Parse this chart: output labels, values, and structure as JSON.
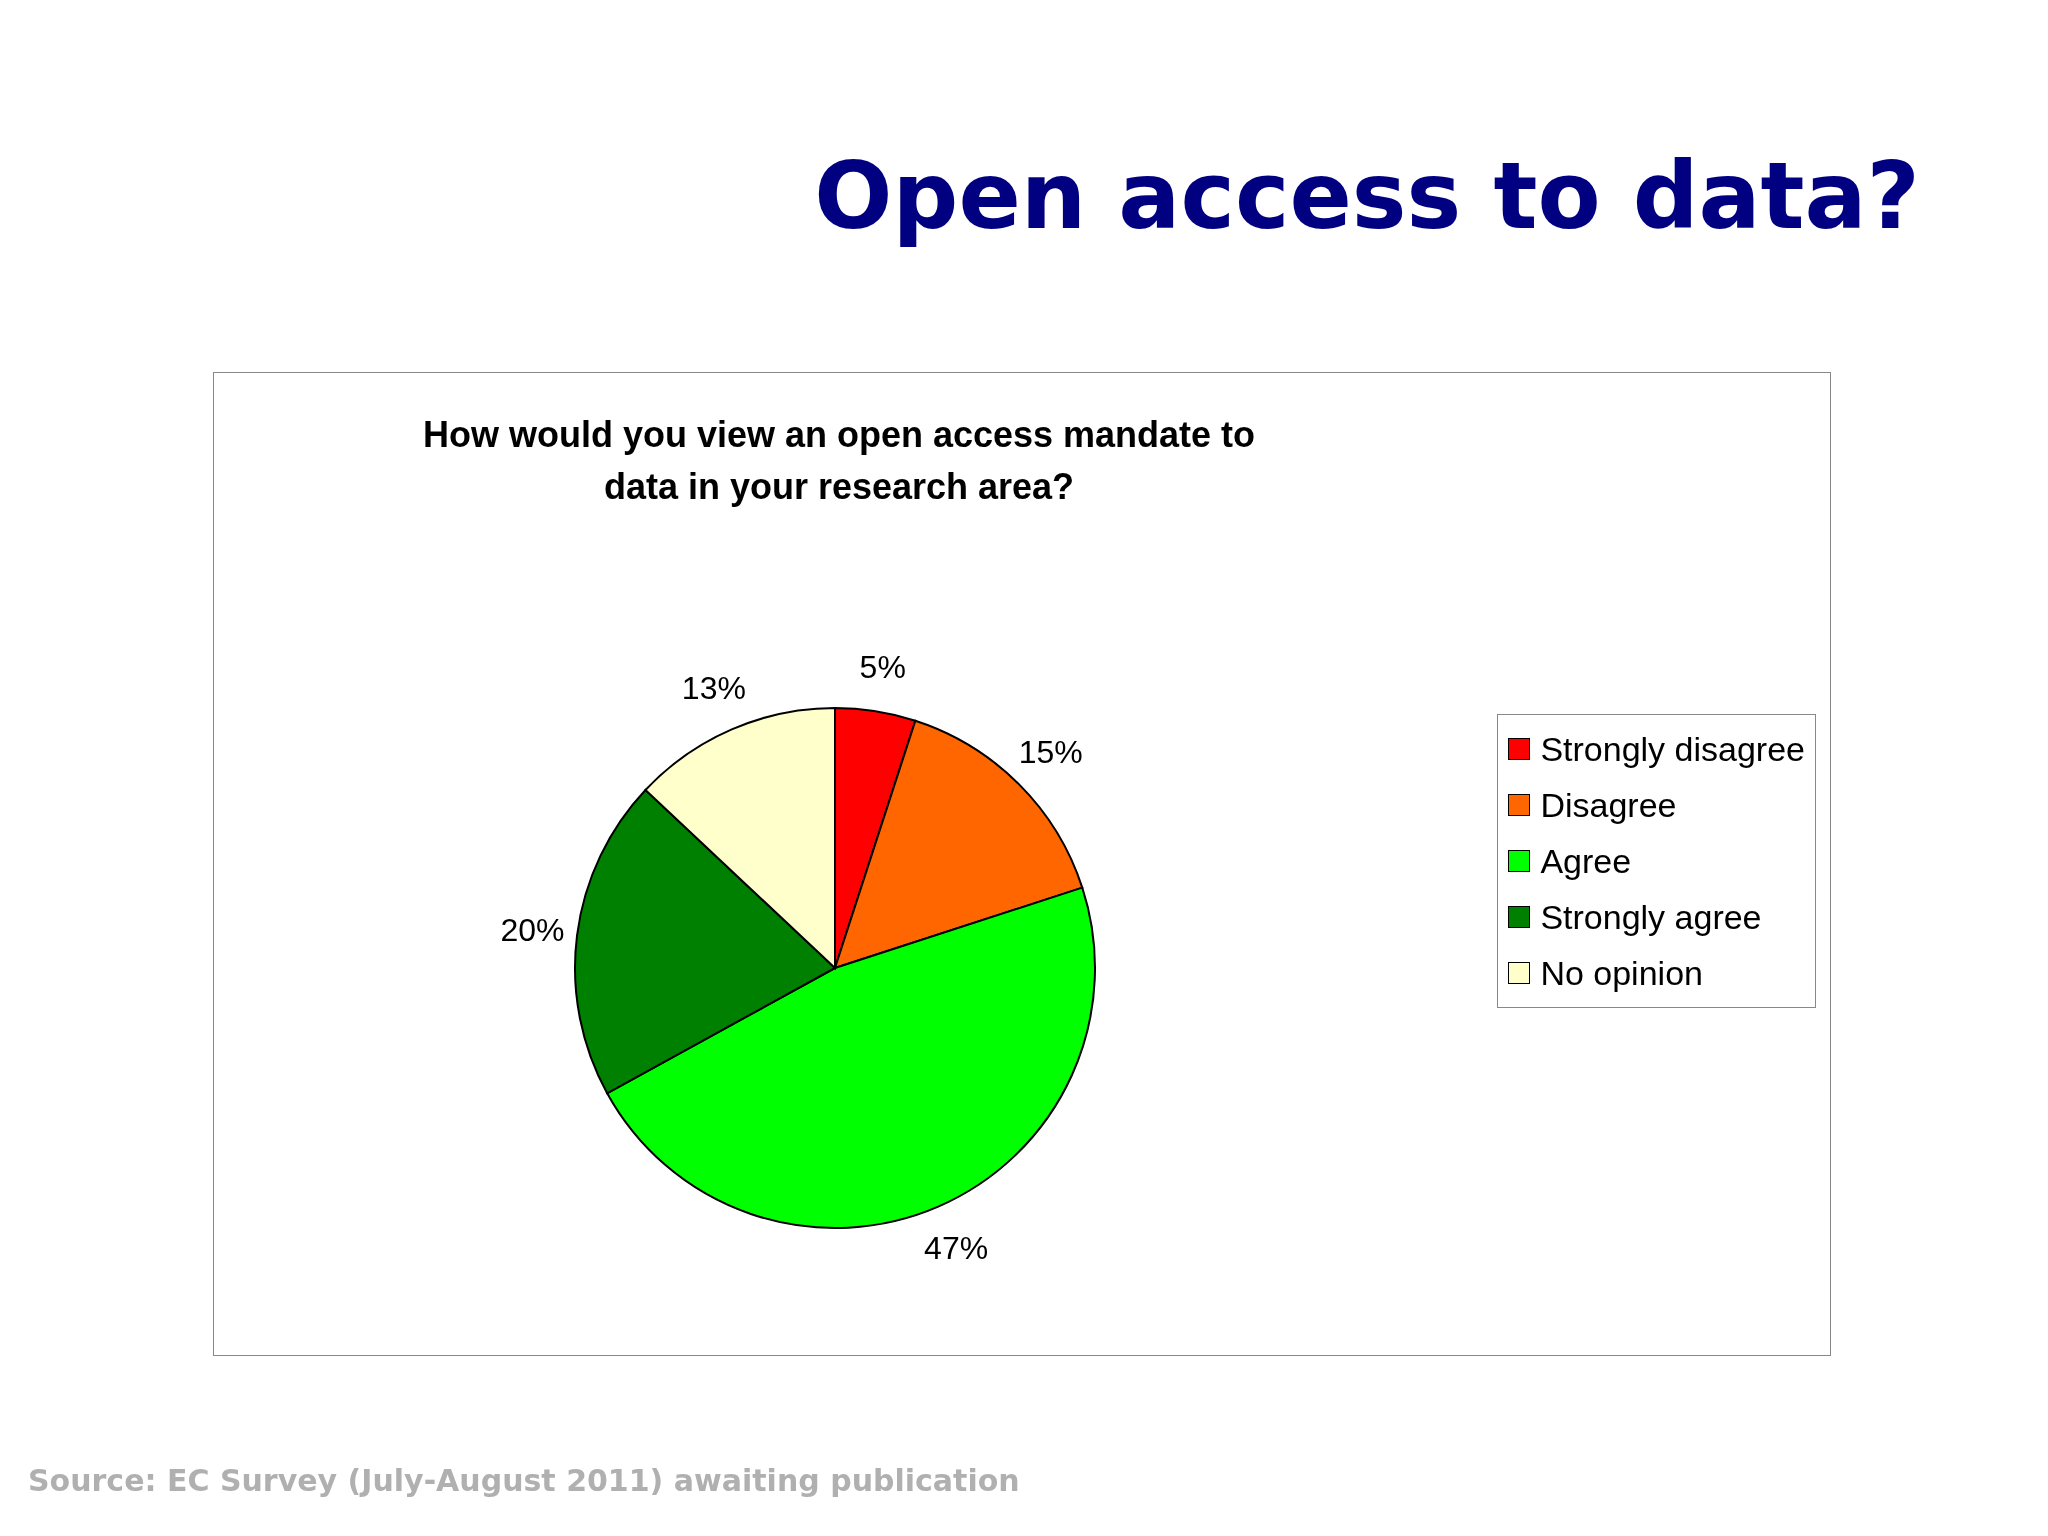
{
  "chart_data": {
    "type": "pie",
    "title": "Open access to data?",
    "subtitle": "How would you view an open access mandate to data in your research area?",
    "categories": [
      "Strongly disagree",
      "Disagree",
      "Agree",
      "Strongly agree",
      "No opinion"
    ],
    "values": [
      5,
      15,
      47,
      20,
      13
    ],
    "colors": [
      "#ff0000",
      "#ff6600",
      "#00ff00",
      "#008000",
      "#ffffcc"
    ],
    "value_labels": [
      "5%",
      "15%",
      "47%",
      "20%",
      "13%"
    ],
    "legend": "right",
    "annotations": [
      "Source: EC Survey (July-August 2011) awaiting publication"
    ]
  }
}
